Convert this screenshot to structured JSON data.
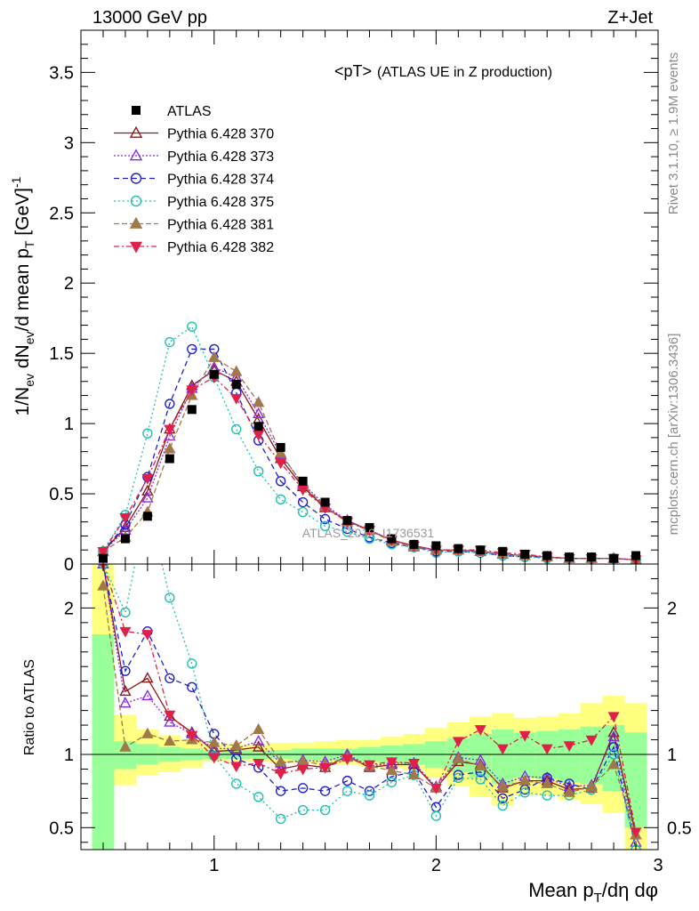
{
  "header": {
    "energy": "13000 GeV pp",
    "process": "Z+Jet"
  },
  "side_labels": {
    "rivet": "Rivet 3.1.10, ≥ 1.9M events",
    "mcplots": "mcplots.cern.ch [arXiv:1306.3436]"
  },
  "plot_title": {
    "main": "<pT>",
    "sub": "(ATLAS UE in Z production)"
  },
  "watermark": "ATLAS_2019_I1736531",
  "axes": {
    "xlabel": "Mean p_T/dη dφ",
    "ylabel_main": "1/N_ev dN_ev/d mean p_T [GeV]^-1",
    "ylabel_ratio": "Ratio to ATLAS"
  },
  "chart_data": [
    {
      "type": "line",
      "panel": "main",
      "xlim": [
        0.4,
        3.0
      ],
      "ylim": [
        0,
        3.8
      ],
      "x_ticks": [
        "1",
        "2",
        "3"
      ],
      "y_ticks": [
        "0",
        "0.5",
        "1",
        "1.5",
        "2",
        "2.5",
        "3",
        "3.5"
      ],
      "x": [
        0.5,
        0.6,
        0.7,
        0.8,
        0.9,
        1.0,
        1.1,
        1.2,
        1.3,
        1.4,
        1.5,
        1.6,
        1.7,
        1.8,
        1.9,
        2.0,
        2.1,
        2.2,
        2.3,
        2.4,
        2.5,
        2.6,
        2.7,
        2.8,
        2.9
      ],
      "series": [
        {
          "name": "ATLAS",
          "color": "#000000",
          "marker": "square",
          "dash": "none",
          "values": [
            0.04,
            0.18,
            0.34,
            0.75,
            1.1,
            1.35,
            1.28,
            0.98,
            0.83,
            0.59,
            0.44,
            0.31,
            0.26,
            0.18,
            0.14,
            0.13,
            0.11,
            0.1,
            0.09,
            0.07,
            0.06,
            0.05,
            0.05,
            0.04,
            0.06
          ]
        },
        {
          "name": "Pythia 6.428 370",
          "color": "#8b1a1a",
          "marker": "triangle-up-open",
          "dash": "none",
          "values": [
            0.09,
            0.26,
            0.52,
            0.96,
            1.27,
            1.38,
            1.3,
            1.03,
            0.75,
            0.55,
            0.4,
            0.31,
            0.24,
            0.17,
            0.13,
            0.1,
            0.1,
            0.09,
            0.07,
            0.06,
            0.05,
            0.04,
            0.04,
            0.04,
            0.03
          ]
        },
        {
          "name": "Pythia 6.428 373",
          "color": "#8a2be2",
          "marker": "triangle-up-open",
          "dash": "2,2",
          "values": [
            0.09,
            0.24,
            0.47,
            0.91,
            1.25,
            1.4,
            1.33,
            1.07,
            0.78,
            0.57,
            0.42,
            0.31,
            0.24,
            0.17,
            0.13,
            0.1,
            0.1,
            0.09,
            0.07,
            0.06,
            0.05,
            0.04,
            0.04,
            0.04,
            0.03
          ]
        },
        {
          "name": "Pythia 6.428 374",
          "color": "#2020cc",
          "marker": "circle-open",
          "dash": "6,4",
          "values": [
            0.09,
            0.28,
            0.62,
            1.14,
            1.53,
            1.53,
            1.22,
            0.88,
            0.59,
            0.44,
            0.32,
            0.25,
            0.19,
            0.15,
            0.12,
            0.09,
            0.09,
            0.08,
            0.06,
            0.05,
            0.05,
            0.04,
            0.04,
            0.04,
            0.03
          ]
        },
        {
          "name": "Pythia 6.428 375",
          "color": "#20c0b0",
          "marker": "circle-open",
          "dash": "2,3",
          "values": [
            0.09,
            0.35,
            0.93,
            1.58,
            1.69,
            1.33,
            0.96,
            0.66,
            0.46,
            0.37,
            0.27,
            0.23,
            0.18,
            0.14,
            0.12,
            0.08,
            0.09,
            0.08,
            0.06,
            0.05,
            0.04,
            0.04,
            0.04,
            0.04,
            0.03
          ]
        },
        {
          "name": "Pythia 6.428 381",
          "color": "#a0784a",
          "marker": "triangle-up",
          "dash": "6,3",
          "values": [
            0.09,
            0.19,
            0.37,
            0.82,
            1.2,
            1.47,
            1.37,
            1.15,
            0.79,
            0.56,
            0.41,
            0.3,
            0.24,
            0.16,
            0.12,
            0.1,
            0.1,
            0.09,
            0.07,
            0.06,
            0.05,
            0.04,
            0.04,
            0.04,
            0.03
          ]
        },
        {
          "name": "Pythia 6.428 382",
          "color": "#e0204a",
          "marker": "triangle-down",
          "dash": "6,3,2,3",
          "values": [
            0.09,
            0.33,
            0.61,
            0.96,
            1.24,
            1.33,
            1.18,
            0.92,
            0.72,
            0.53,
            0.4,
            0.3,
            0.24,
            0.17,
            0.13,
            0.1,
            0.1,
            0.1,
            0.08,
            0.07,
            0.05,
            0.04,
            0.04,
            0.04,
            0.03
          ]
        }
      ]
    },
    {
      "type": "line",
      "panel": "ratio",
      "xlim": [
        0.4,
        3.0
      ],
      "ylim": [
        0.35,
        2.3
      ],
      "x_ticks": [
        "1",
        "2",
        "3"
      ],
      "y_ticks": [
        "0.5",
        "1",
        "2"
      ],
      "x": [
        0.5,
        0.6,
        0.7,
        0.8,
        0.9,
        1.0,
        1.1,
        1.2,
        1.3,
        1.4,
        1.5,
        1.6,
        1.7,
        1.8,
        1.9,
        2.0,
        2.1,
        2.2,
        2.3,
        2.4,
        2.5,
        2.6,
        2.7,
        2.8,
        2.9
      ],
      "bands": {
        "edges": [
          0.45,
          0.55,
          0.65,
          0.75,
          0.85,
          0.95,
          1.05,
          1.15,
          1.25,
          1.35,
          1.45,
          1.55,
          1.65,
          1.75,
          1.85,
          1.95,
          2.05,
          2.15,
          2.25,
          2.35,
          2.45,
          2.55,
          2.65,
          2.75,
          2.85,
          2.95
        ],
        "outer_color": "#ffff80",
        "inner_color": "#99ff99",
        "outer_low": [
          0.35,
          0.79,
          0.86,
          0.88,
          0.91,
          0.95,
          0.95,
          0.95,
          0.94,
          0.94,
          0.93,
          0.93,
          0.92,
          0.91,
          0.89,
          0.84,
          0.78,
          0.71,
          0.65,
          0.72,
          0.72,
          0.69,
          0.66,
          0.6,
          0.35
        ],
        "outer_high": [
          2.3,
          1.27,
          1.17,
          1.13,
          1.1,
          1.07,
          1.07,
          1.07,
          1.08,
          1.08,
          1.09,
          1.1,
          1.1,
          1.12,
          1.14,
          1.18,
          1.22,
          1.26,
          1.28,
          1.25,
          1.26,
          1.28,
          1.35,
          1.4,
          1.35
        ],
        "inner_low": [
          0.35,
          0.9,
          0.93,
          0.95,
          0.96,
          0.97,
          0.97,
          0.97,
          0.97,
          0.96,
          0.96,
          0.96,
          0.95,
          0.94,
          0.93,
          0.91,
          0.88,
          0.84,
          0.8,
          0.84,
          0.83,
          0.81,
          0.8,
          0.75,
          0.5
        ],
        "inner_high": [
          1.82,
          1.09,
          1.07,
          1.05,
          1.04,
          1.03,
          1.03,
          1.03,
          1.03,
          1.04,
          1.04,
          1.04,
          1.05,
          1.06,
          1.07,
          1.09,
          1.11,
          1.14,
          1.17,
          1.15,
          1.16,
          1.17,
          1.19,
          1.2,
          1.15
        ]
      },
      "series": [
        {
          "name": "Pythia 6.428 370",
          "values": [
            2.3,
            1.43,
            1.52,
            1.26,
            1.15,
            1.02,
            1.03,
            1.05,
            0.9,
            0.93,
            0.91,
            0.99,
            0.91,
            0.93,
            0.93,
            0.77,
            0.95,
            0.93,
            0.77,
            0.82,
            0.82,
            0.76,
            0.77,
            1.15,
            0.45
          ]
        },
        {
          "name": "Pythia 6.428 373",
          "values": [
            2.3,
            1.35,
            1.4,
            1.22,
            1.14,
            1.04,
            1.04,
            1.09,
            0.94,
            0.96,
            0.95,
            1.0,
            0.92,
            0.94,
            0.94,
            0.78,
            0.98,
            0.96,
            0.8,
            0.85,
            0.84,
            0.78,
            0.79,
            1.12,
            0.4
          ]
        },
        {
          "name": "Pythia 6.428 374",
          "values": [
            2.3,
            1.57,
            1.84,
            1.52,
            1.46,
            1.14,
            0.97,
            0.91,
            0.75,
            0.77,
            0.75,
            0.82,
            0.75,
            0.85,
            0.88,
            0.64,
            0.86,
            0.88,
            0.7,
            0.76,
            0.84,
            0.8,
            0.76,
            1.05,
            0.35
          ]
        },
        {
          "name": "Pythia 6.428 375",
          "values": [
            2.3,
            1.97,
            2.73,
            2.07,
            1.62,
            0.99,
            0.8,
            0.71,
            0.56,
            0.62,
            0.62,
            0.75,
            0.72,
            0.81,
            0.86,
            0.58,
            0.84,
            0.83,
            0.65,
            0.74,
            0.72,
            0.72,
            0.76,
            1.0,
            0.35
          ]
        },
        {
          "name": "Pythia 6.428 381",
          "values": [
            2.15,
            1.05,
            1.14,
            1.09,
            1.1,
            1.08,
            1.06,
            1.17,
            0.95,
            0.95,
            0.93,
            0.98,
            0.92,
            0.89,
            0.86,
            0.77,
            0.97,
            0.92,
            0.78,
            0.82,
            0.8,
            0.74,
            0.78,
            0.93,
            0.45
          ]
        },
        {
          "name": "Pythia 6.428 382",
          "values": [
            2.3,
            1.84,
            1.82,
            1.27,
            1.13,
            0.98,
            0.92,
            0.94,
            0.87,
            0.9,
            0.91,
            0.97,
            0.93,
            0.95,
            0.94,
            0.77,
            1.09,
            1.17,
            1.04,
            1.13,
            1.04,
            1.06,
            1.1,
            1.26,
            0.47
          ]
        }
      ]
    }
  ]
}
